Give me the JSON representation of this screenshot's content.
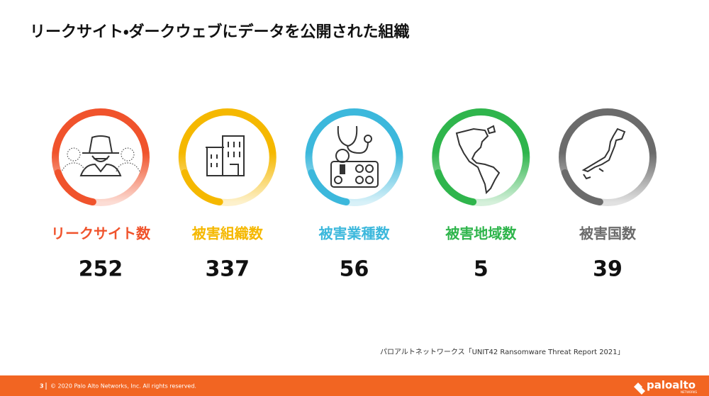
{
  "header": {
    "title": "リークサイト・ダークウェブにデータを公開された組織"
  },
  "stats": [
    {
      "label": "リークサイト数",
      "value": 252,
      "color": "#f0532c"
    },
    {
      "label": "被害組織数",
      "value": 337,
      "color": "#f5b800"
    },
    {
      "label": "被害業種数",
      "value": 56,
      "color": "#3cb8dc"
    },
    {
      "label": "被害地域数",
      "value": 5,
      "color": "#2fb54c"
    },
    {
      "label": "被害国数",
      "value": 39,
      "color": "#6b6b6b"
    }
  ],
  "source": "パロアルトネットワークス「UNIT42 Ransomware Threat Report 2021」",
  "footer": {
    "page": "3",
    "copyright": "© 2020 Palo Alto Networks, Inc. All rights reserved.",
    "logo": "paloalto",
    "logo_tagline": "NETWORKS"
  }
}
